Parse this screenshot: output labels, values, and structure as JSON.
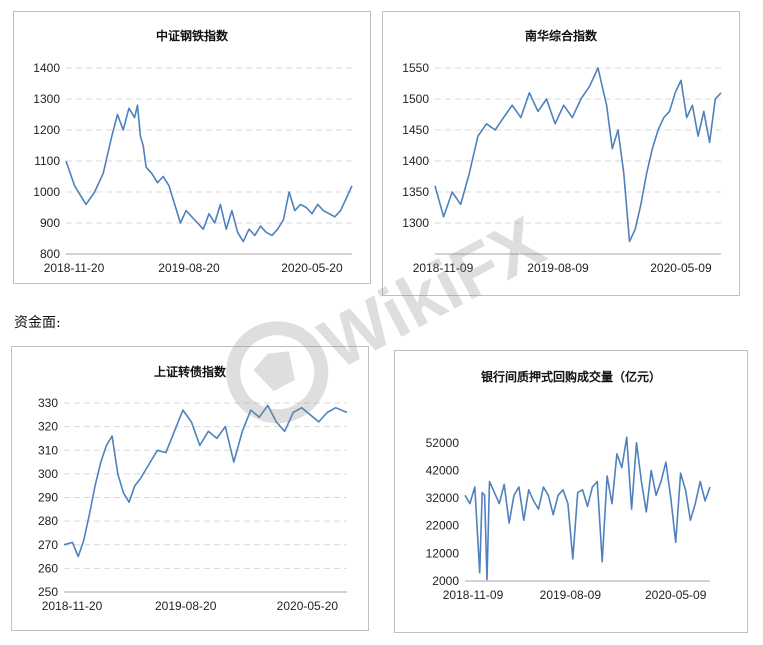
{
  "section_label": "资金面:",
  "watermark_text": "WikiFX",
  "colors": {
    "line": "#4f81bd",
    "grid": "#d9d9d9",
    "axis": "#a6a6a6",
    "watermark": "#8a8a8a"
  },
  "chart_data": [
    {
      "id": "steel",
      "type": "line",
      "title": "中证钢铁指数",
      "xlabels": [
        "2018-11-20",
        "2019-08-20",
        "2020-05-20"
      ],
      "ylim": [
        800,
        1400
      ],
      "yticks": [
        800,
        900,
        1000,
        1100,
        1200,
        1300,
        1400
      ],
      "grid": true,
      "x": [
        0,
        0.03,
        0.07,
        0.1,
        0.13,
        0.16,
        0.18,
        0.2,
        0.22,
        0.24,
        0.25,
        0.26,
        0.27,
        0.28,
        0.3,
        0.32,
        0.34,
        0.36,
        0.38,
        0.4,
        0.42,
        0.44,
        0.46,
        0.48,
        0.5,
        0.52,
        0.54,
        0.56,
        0.58,
        0.6,
        0.62,
        0.64,
        0.66,
        0.68,
        0.7,
        0.72,
        0.74,
        0.76,
        0.78,
        0.8,
        0.82,
        0.84,
        0.86,
        0.88,
        0.9,
        0.92,
        0.94,
        0.96,
        0.98,
        1.0
      ],
      "y": [
        1100,
        1020,
        960,
        1000,
        1060,
        1180,
        1250,
        1200,
        1270,
        1240,
        1280,
        1180,
        1150,
        1080,
        1060,
        1030,
        1050,
        1020,
        960,
        900,
        940,
        920,
        900,
        880,
        930,
        900,
        960,
        880,
        940,
        870,
        840,
        880,
        860,
        890,
        870,
        860,
        880,
        910,
        1000,
        940,
        960,
        950,
        930,
        960,
        940,
        930,
        920,
        940,
        980,
        1020
      ]
    },
    {
      "id": "nanhua",
      "type": "line",
      "title": "南华综合指数",
      "xlabels": [
        "2018-11-09",
        "2019-08-09",
        "2020-05-09"
      ],
      "ylim": [
        1250,
        1550
      ],
      "yticks": [
        1300,
        1350,
        1400,
        1450,
        1500,
        1550
      ],
      "grid": true,
      "x": [
        0,
        0.03,
        0.06,
        0.09,
        0.12,
        0.15,
        0.18,
        0.21,
        0.24,
        0.27,
        0.3,
        0.33,
        0.36,
        0.39,
        0.42,
        0.45,
        0.48,
        0.51,
        0.54,
        0.57,
        0.6,
        0.62,
        0.64,
        0.66,
        0.68,
        0.7,
        0.72,
        0.74,
        0.76,
        0.78,
        0.8,
        0.82,
        0.84,
        0.86,
        0.88,
        0.9,
        0.92,
        0.94,
        0.96,
        0.98,
        1.0
      ],
      "y": [
        1360,
        1310,
        1350,
        1330,
        1380,
        1440,
        1460,
        1450,
        1470,
        1490,
        1470,
        1510,
        1480,
        1500,
        1460,
        1490,
        1470,
        1500,
        1520,
        1550,
        1490,
        1420,
        1450,
        1380,
        1270,
        1290,
        1330,
        1380,
        1420,
        1450,
        1470,
        1480,
        1510,
        1530,
        1470,
        1490,
        1440,
        1480,
        1430,
        1500,
        1510
      ]
    },
    {
      "id": "convertible",
      "type": "line",
      "title": "上证转债指数",
      "xlabels": [
        "2018-11-20",
        "2019-08-20",
        "2020-05-20"
      ],
      "ylim": [
        250,
        330
      ],
      "yticks": [
        250,
        260,
        270,
        280,
        290,
        300,
        310,
        320,
        330
      ],
      "grid": true,
      "x": [
        0,
        0.03,
        0.05,
        0.07,
        0.09,
        0.11,
        0.13,
        0.15,
        0.17,
        0.19,
        0.21,
        0.23,
        0.25,
        0.27,
        0.3,
        0.33,
        0.36,
        0.39,
        0.42,
        0.45,
        0.48,
        0.51,
        0.54,
        0.57,
        0.6,
        0.63,
        0.66,
        0.69,
        0.72,
        0.75,
        0.78,
        0.81,
        0.84,
        0.87,
        0.9,
        0.93,
        0.96,
        1.0
      ],
      "y": [
        270,
        271,
        265,
        272,
        283,
        295,
        305,
        312,
        316,
        300,
        292,
        288,
        295,
        298,
        304,
        310,
        309,
        318,
        327,
        322,
        312,
        318,
        315,
        320,
        305,
        318,
        327,
        324,
        329,
        322,
        318,
        326,
        328,
        325,
        322,
        326,
        328,
        326
      ]
    },
    {
      "id": "repo",
      "type": "line",
      "title": "银行间质押式回购成交量（亿元）",
      "xlabels": [
        "2018-11-09",
        "2019-08-09",
        "2020-05-09"
      ],
      "ylim": [
        2000,
        57000
      ],
      "yticks": [
        2000,
        12000,
        22000,
        32000,
        42000,
        52000
      ],
      "grid": false,
      "x": [
        0,
        0.02,
        0.04,
        0.06,
        0.07,
        0.08,
        0.09,
        0.1,
        0.12,
        0.14,
        0.16,
        0.18,
        0.2,
        0.22,
        0.24,
        0.26,
        0.28,
        0.3,
        0.32,
        0.34,
        0.36,
        0.38,
        0.4,
        0.42,
        0.44,
        0.46,
        0.48,
        0.5,
        0.52,
        0.54,
        0.56,
        0.58,
        0.6,
        0.62,
        0.64,
        0.66,
        0.68,
        0.7,
        0.72,
        0.74,
        0.76,
        0.78,
        0.8,
        0.82,
        0.84,
        0.86,
        0.88,
        0.9,
        0.92,
        0.94,
        0.96,
        0.98,
        1.0
      ],
      "y": [
        33000,
        30000,
        36000,
        5000,
        34000,
        33000,
        2500,
        38000,
        34000,
        30000,
        37000,
        23000,
        33000,
        36000,
        24000,
        35000,
        31000,
        28000,
        36000,
        33000,
        26000,
        33000,
        35000,
        30000,
        10000,
        34000,
        35000,
        29000,
        36000,
        38000,
        9000,
        40000,
        30000,
        48000,
        43000,
        54000,
        28000,
        52000,
        38000,
        27000,
        42000,
        33000,
        38000,
        45000,
        32000,
        16000,
        41000,
        35000,
        24000,
        30000,
        38000,
        31000,
        36000
      ]
    }
  ]
}
